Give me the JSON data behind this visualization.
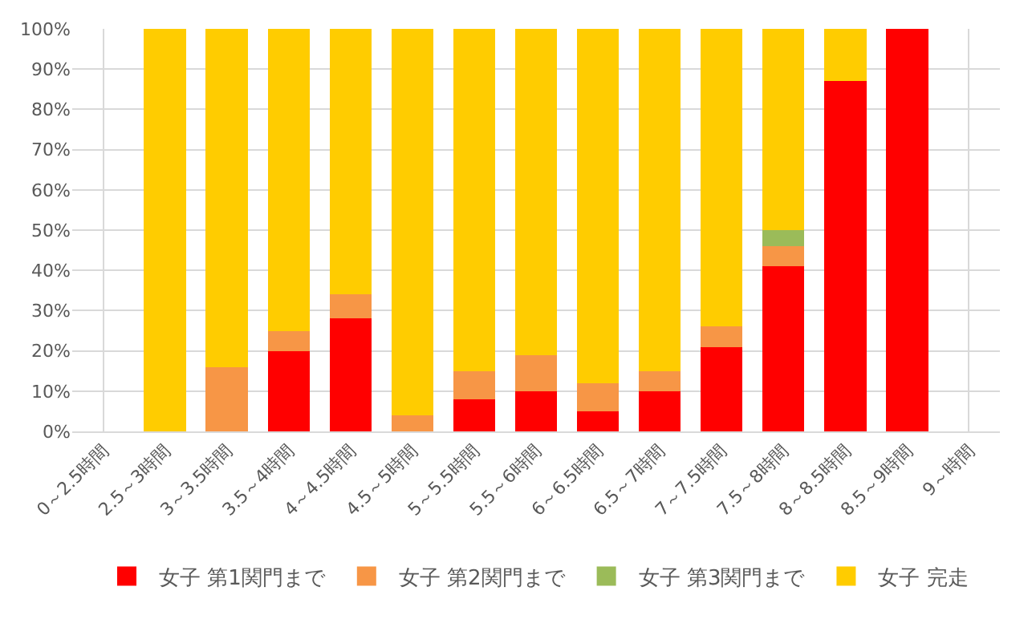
{
  "chart_data": {
    "type": "bar",
    "stacked": true,
    "categories": [
      "0～2.5時間",
      "2.5～3時間",
      "3～3.5時間",
      "3.5～4時間",
      "4～4.5時間",
      "4.5～5時間",
      "5～5.5時間",
      "5.5～6時間",
      "6～6.5時間",
      "6.5～7時間",
      "7～7.5時間",
      "7.5～8時間",
      "8～8.5時間",
      "8.5～9時間",
      "9～時間"
    ],
    "series": [
      {
        "name": "女子 第1関門まで",
        "color": "#ff0000",
        "values": [
          null,
          0,
          0,
          20,
          28,
          0,
          8,
          10,
          5,
          10,
          21,
          41,
          87,
          100,
          null
        ]
      },
      {
        "name": "女子 第2関門まで",
        "color": "#f79646",
        "values": [
          null,
          0,
          16,
          5,
          6,
          4,
          7,
          9,
          7,
          5,
          5,
          5,
          0,
          0,
          null
        ]
      },
      {
        "name": "女子 第3関門まで",
        "color": "#9bbb59",
        "values": [
          null,
          0,
          0,
          0,
          0,
          0,
          0,
          0,
          0,
          0,
          0,
          4,
          0,
          0,
          null
        ]
      },
      {
        "name": "女子 完走",
        "color": "#ffcc00",
        "values": [
          null,
          100,
          84,
          75,
          66,
          96,
          85,
          81,
          88,
          85,
          74,
          50,
          13,
          0,
          null
        ]
      }
    ],
    "ylim": [
      0,
      100
    ],
    "yticks": [
      {
        "value": 0,
        "label": "0%"
      },
      {
        "value": 10,
        "label": "10%"
      },
      {
        "value": 20,
        "label": "20%"
      },
      {
        "value": 30,
        "label": "30%"
      },
      {
        "value": 40,
        "label": "40%"
      },
      {
        "value": 50,
        "label": "50%"
      },
      {
        "value": 60,
        "label": "60%"
      },
      {
        "value": 70,
        "label": "70%"
      },
      {
        "value": 80,
        "label": "80%"
      },
      {
        "value": 90,
        "label": "90%"
      },
      {
        "value": 100,
        "label": "100%"
      }
    ],
    "grid": true,
    "legend": "bottom"
  }
}
